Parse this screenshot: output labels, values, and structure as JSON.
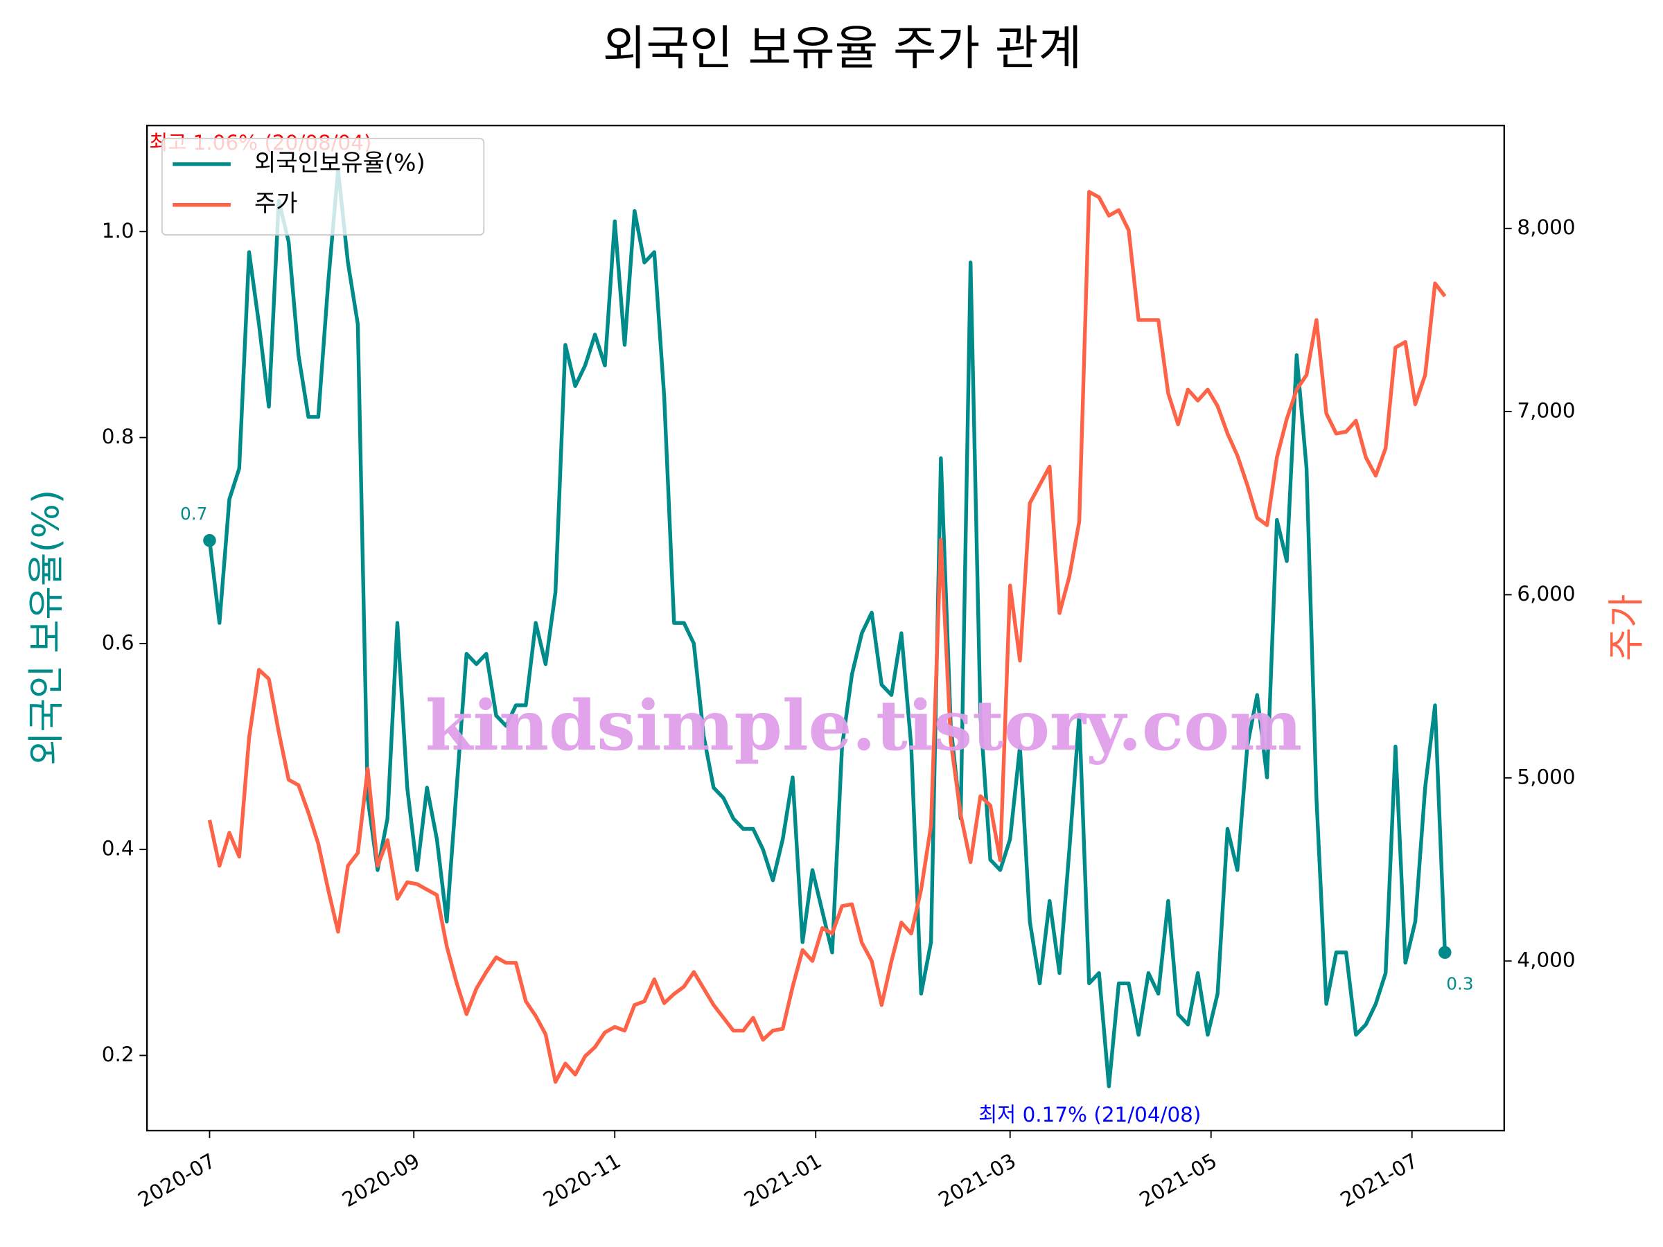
{
  "chart_data": {
    "type": "line",
    "title": "외국인 보유율 주가 관계",
    "y_label": "외국인 보유율(%)",
    "y2_label": "주가",
    "watermark": "kindsimple.tistory.com",
    "annotations": [
      {
        "text": "최고 1.06% (20/08/04)",
        "color": "#ff0000"
      },
      {
        "text": "최저 0.17% (21/04/08)",
        "color": "#0000ff"
      }
    ],
    "legend": "upper left",
    "x": [
      "2020-07-01",
      "2020-07-04",
      "2020-07-07",
      "2020-07-10",
      "2020-07-13",
      "2020-07-16",
      "2020-07-19",
      "2020-07-22",
      "2020-07-25",
      "2020-07-28",
      "2020-07-31",
      "2020-08-03",
      "2020-08-06",
      "2020-08-09",
      "2020-08-12",
      "2020-08-15",
      "2020-08-18",
      "2020-08-21",
      "2020-08-24",
      "2020-08-27",
      "2020-08-30",
      "2020-09-02",
      "2020-09-05",
      "2020-09-08",
      "2020-09-11",
      "2020-09-14",
      "2020-09-17",
      "2020-09-20",
      "2020-09-23",
      "2020-09-26",
      "2020-09-29",
      "2020-10-02",
      "2020-10-05",
      "2020-10-08",
      "2020-10-11",
      "2020-10-14",
      "2020-10-17",
      "2020-10-20",
      "2020-10-23",
      "2020-10-26",
      "2020-10-29",
      "2020-11-01",
      "2020-11-04",
      "2020-11-07",
      "2020-11-10",
      "2020-11-13",
      "2020-11-16",
      "2020-11-19",
      "2020-11-22",
      "2020-11-25",
      "2020-11-28",
      "2020-12-01",
      "2020-12-04",
      "2020-12-07",
      "2020-12-10",
      "2020-12-13",
      "2020-12-16",
      "2020-12-19",
      "2020-12-22",
      "2020-12-25",
      "2020-12-28",
      "2020-12-31",
      "2021-01-03",
      "2021-01-06",
      "2021-01-09",
      "2021-01-12",
      "2021-01-15",
      "2021-01-18",
      "2021-01-21",
      "2021-01-24",
      "2021-01-27",
      "2021-01-30",
      "2021-02-02",
      "2021-02-05",
      "2021-02-08",
      "2021-02-11",
      "2021-02-14",
      "2021-02-17",
      "2021-02-20",
      "2021-02-23",
      "2021-02-26",
      "2021-03-01",
      "2021-03-04",
      "2021-03-07",
      "2021-03-10",
      "2021-03-13",
      "2021-03-16",
      "2021-03-19",
      "2021-03-22",
      "2021-03-25",
      "2021-03-28",
      "2021-03-31",
      "2021-04-03",
      "2021-04-06",
      "2021-04-09",
      "2021-04-12",
      "2021-04-15",
      "2021-04-18",
      "2021-04-21",
      "2021-04-24",
      "2021-04-27",
      "2021-04-30",
      "2021-05-03",
      "2021-05-06",
      "2021-05-09",
      "2021-05-12",
      "2021-05-15",
      "2021-05-18",
      "2021-05-21",
      "2021-05-24",
      "2021-05-27",
      "2021-05-30",
      "2021-06-02",
      "2021-06-05",
      "2021-06-08",
      "2021-06-11",
      "2021-06-14",
      "2021-06-17",
      "2021-06-20",
      "2021-06-23",
      "2021-06-26",
      "2021-06-29",
      "2021-07-02",
      "2021-07-05",
      "2021-07-08",
      "2021-07-11"
    ],
    "series": [
      {
        "name": "외국인보유율(%)",
        "color": "#008b8b",
        "axis": "y",
        "values": [
          0.7,
          0.62,
          0.74,
          0.77,
          0.98,
          0.91,
          0.83,
          1.03,
          0.99,
          0.88,
          0.82,
          0.82,
          0.95,
          1.06,
          0.97,
          0.91,
          0.45,
          0.38,
          0.43,
          0.62,
          0.46,
          0.38,
          0.46,
          0.41,
          0.33,
          0.46,
          0.59,
          0.58,
          0.59,
          0.53,
          0.52,
          0.54,
          0.54,
          0.62,
          0.58,
          0.65,
          0.89,
          0.85,
          0.87,
          0.9,
          0.87,
          1.01,
          0.89,
          1.02,
          0.97,
          0.98,
          0.84,
          0.62,
          0.62,
          0.6,
          0.51,
          0.46,
          0.45,
          0.43,
          0.42,
          0.42,
          0.4,
          0.37,
          0.41,
          0.47,
          0.31,
          0.38,
          0.34,
          0.3,
          0.5,
          0.57,
          0.61,
          0.63,
          0.56,
          0.55,
          0.61,
          0.5,
          0.26,
          0.31,
          0.78,
          0.52,
          0.43,
          0.97,
          0.53,
          0.39,
          0.38,
          0.41,
          0.5,
          0.33,
          0.27,
          0.35,
          0.28,
          0.4,
          0.53,
          0.27,
          0.28,
          0.17,
          0.27,
          0.27,
          0.22,
          0.28,
          0.26,
          0.35,
          0.24,
          0.23,
          0.28,
          0.22,
          0.26,
          0.42,
          0.38,
          0.5,
          0.55,
          0.47,
          0.72,
          0.68,
          0.88,
          0.77,
          0.45,
          0.25,
          0.3,
          0.3,
          0.22,
          0.23,
          0.25,
          0.28,
          0.5,
          0.29,
          0.33,
          0.46,
          0.54,
          0.3
        ],
        "value_labels": [
          "0.7",
          null,
          null,
          null,
          null,
          null,
          null,
          null,
          null,
          null,
          null,
          null,
          null,
          null,
          null,
          null,
          null,
          null,
          null,
          null,
          null,
          null,
          null,
          null,
          null,
          null,
          null,
          null,
          null,
          null,
          null,
          null,
          null,
          null,
          null,
          null,
          null,
          null,
          null,
          null,
          null,
          null,
          null,
          null,
          null,
          null,
          null,
          null,
          null,
          null,
          null,
          null,
          null,
          null,
          null,
          null,
          null,
          null,
          null,
          null,
          null,
          null,
          null,
          null,
          null,
          null,
          null,
          null,
          null,
          null,
          null,
          null,
          null,
          null,
          null,
          null,
          null,
          null,
          null,
          null,
          null,
          null,
          null,
          null,
          null,
          null,
          null,
          null,
          null,
          null,
          null,
          null,
          null,
          null,
          null,
          null,
          null,
          null,
          null,
          null,
          null,
          null,
          null,
          null,
          null,
          null,
          null,
          null,
          null,
          null,
          null,
          null,
          null,
          null,
          null,
          null,
          null,
          null,
          null,
          null,
          null,
          null,
          null,
          null,
          null,
          "0.3"
        ]
      },
      {
        "name": "주가",
        "color": "#ff6347",
        "axis": "y2",
        "values": [
          4770,
          4520,
          4700,
          4570,
          5220,
          5590,
          5540,
          5250,
          4990,
          4960,
          4810,
          4640,
          4390,
          4160,
          4520,
          4590,
          5050,
          4520,
          4660,
          4340,
          4430,
          4420,
          4390,
          4360,
          4080,
          3880,
          3710,
          3850,
          3940,
          4020,
          3990,
          3990,
          3780,
          3700,
          3600,
          3340,
          3440,
          3380,
          3480,
          3530,
          3610,
          3640,
          3620,
          3760,
          3780,
          3900,
          3770,
          3820,
          3860,
          3940,
          3850,
          3760,
          3690,
          3620,
          3620,
          3690,
          3570,
          3620,
          3630,
          3860,
          4060,
          4000,
          4180,
          4150,
          4300,
          4310,
          4100,
          4000,
          3760,
          4000,
          4210,
          4150,
          4390,
          4740,
          6300,
          5200,
          4800,
          4540,
          4900,
          4850,
          4550,
          6050,
          5640,
          6500,
          6600,
          6700,
          5900,
          6100,
          6400,
          8200,
          8170,
          8070,
          8100,
          7990,
          7500,
          7500,
          7500,
          7100,
          6930,
          7120,
          7060,
          7120,
          7030,
          6880,
          6760,
          6600,
          6420,
          6380,
          6750,
          6960,
          7120,
          7200,
          7500,
          6990,
          6880,
          6890,
          6950,
          6750,
          6650,
          6800,
          7350,
          7380,
          7040,
          7200,
          7700,
          7630
        ]
      }
    ],
    "xlim": [
      "2020-06-12",
      "2021-07-29"
    ],
    "xticks": [
      "2020-07",
      "2020-09",
      "2020-11",
      "2021-01",
      "2021-03",
      "2021-05",
      "2021-07"
    ],
    "ylim": [
      0.127,
      1.103
    ],
    "yticks": [
      0.2,
      0.4,
      0.6,
      0.8,
      {
        "value": 1,
        "label": "1.0"
      }
    ],
    "y2lim": [
      3074,
      8562
    ],
    "y2ticks": [
      {
        "value": 4000,
        "label": "4,000"
      },
      {
        "value": 5000,
        "label": "5,000"
      },
      {
        "value": 6000,
        "label": "6,000"
      },
      {
        "value": 7000,
        "label": "7,000"
      },
      {
        "value": 8000,
        "label": "8,000"
      }
    ],
    "grid": false
  }
}
